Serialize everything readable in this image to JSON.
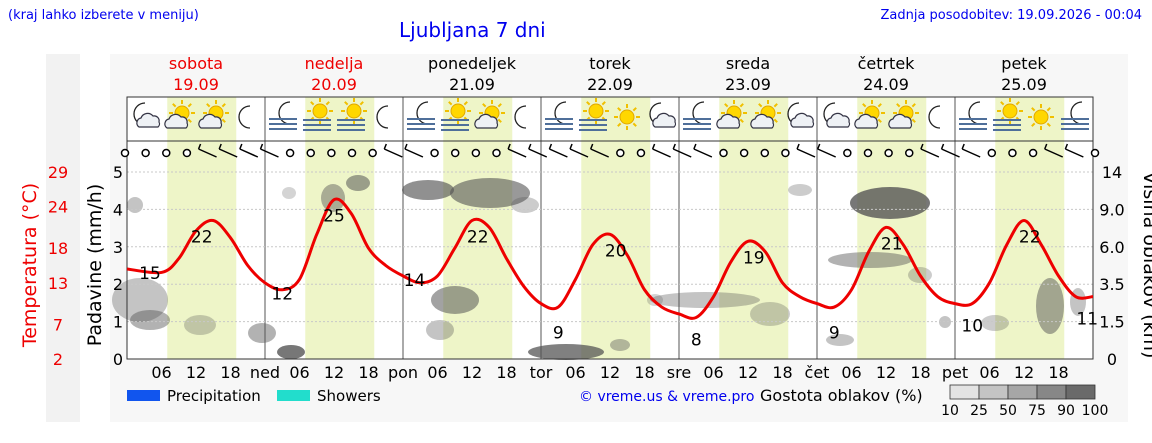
{
  "header": {
    "left_note": "(kraj lahko izberete v meniju)",
    "title": "Ljubljana 7 dni",
    "updated": "Zadnja posodobitev: 19.09.2026 - 00:04"
  },
  "footer": {
    "legend_precip": "Precipitation",
    "legend_showers": "Showers",
    "copyright": "© vreme.us & vreme.pro",
    "cloud_density_label": "Gostota oblakov (%)",
    "cloud_density_scale": [
      "10",
      "25",
      "50",
      "75",
      "90",
      "100"
    ]
  },
  "colors": {
    "temperature": "#ee0000",
    "weekend": "#ee0000",
    "precipitation": "#1155ee",
    "showers": "#22ddcc",
    "day_band": "#eef5c8",
    "note": "#0000ee"
  },
  "chart_data": {
    "type": "line",
    "title": "Ljubljana 7 dni",
    "days": [
      {
        "name": "sobota",
        "date": "19.09",
        "short": "",
        "weekend": true
      },
      {
        "name": "nedelja",
        "date": "20.09",
        "short": "ned",
        "weekend": true
      },
      {
        "name": "ponedeljek",
        "date": "21.09",
        "short": "pon",
        "weekend": false
      },
      {
        "name": "torek",
        "date": "22.09",
        "short": "tor",
        "weekend": false
      },
      {
        "name": "sreda",
        "date": "23.09",
        "short": "sre",
        "weekend": false
      },
      {
        "name": "četrtek",
        "date": "24.09",
        "short": "čet",
        "weekend": false
      },
      {
        "name": "petek",
        "date": "25.09",
        "short": "pet",
        "weekend": false
      }
    ],
    "hour_ticks": [
      "06",
      "12",
      "18"
    ],
    "x_range_hours": [
      0,
      168
    ],
    "left_axis_precip": {
      "label": "Padavine (mm/h)",
      "ticks": [
        0,
        1,
        2,
        3,
        4,
        5
      ],
      "range": [
        0,
        5
      ]
    },
    "left_axis_temp": {
      "label": "Temperatura (°C)",
      "ticks": [
        2,
        7,
        13,
        18,
        24,
        29
      ]
    },
    "right_axis_cloud": {
      "label": "Višina oblakov (km)",
      "ticks": [
        "0",
        "1.5",
        "3.5",
        "6.0",
        "9.0",
        "14"
      ]
    },
    "temperature_series": {
      "hours": [
        0,
        6,
        9,
        12,
        15,
        18,
        21,
        24,
        27,
        30,
        33,
        36,
        39,
        42,
        45,
        48,
        51,
        54,
        57,
        60,
        63,
        66,
        69,
        72,
        75,
        78,
        81,
        84,
        87,
        90,
        93,
        96,
        99,
        102,
        105,
        108,
        111,
        114,
        117,
        120,
        123,
        126,
        129,
        132,
        135,
        138,
        141,
        144,
        147,
        150,
        153,
        156,
        159,
        162,
        165,
        168
      ],
      "values": [
        15,
        14.5,
        16.5,
        20.5,
        22,
        19.5,
        15.5,
        13,
        12,
        13.5,
        20,
        25,
        23,
        18,
        15.5,
        14,
        13,
        14,
        18,
        22,
        21,
        16.5,
        12.5,
        10,
        9.5,
        13.5,
        18.5,
        20,
        17,
        12,
        9.5,
        8.5,
        8,
        11,
        16,
        19,
        17.5,
        13,
        11,
        10,
        9.5,
        12,
        17.5,
        21,
        18.5,
        14,
        11,
        10,
        10,
        13,
        18.5,
        22,
        18.5,
        14,
        11,
        11
      ]
    },
    "temperature_labels": [
      {
        "hour": 4,
        "value": "15"
      },
      {
        "hour": 13,
        "value": "22"
      },
      {
        "hour": 27,
        "value": "12"
      },
      {
        "hour": 36,
        "value": "25"
      },
      {
        "hour": 50,
        "value": "14"
      },
      {
        "hour": 61,
        "value": "22"
      },
      {
        "hour": 75,
        "value": "9"
      },
      {
        "hour": 85,
        "value": "20"
      },
      {
        "hour": 99,
        "value": "8"
      },
      {
        "hour": 109,
        "value": "19"
      },
      {
        "hour": 123,
        "value": "9"
      },
      {
        "hour": 133,
        "value": "21"
      },
      {
        "hour": 147,
        "value": "10"
      },
      {
        "hour": 157,
        "value": "22"
      },
      {
        "hour": 167,
        "value": "11"
      }
    ],
    "day_bands_hours": [
      [
        7,
        19
      ],
      [
        31,
        43
      ],
      [
        55,
        67
      ],
      [
        79,
        91
      ],
      [
        103,
        115
      ],
      [
        127,
        139
      ],
      [
        151,
        163
      ]
    ],
    "precipitation": [],
    "showers": []
  }
}
